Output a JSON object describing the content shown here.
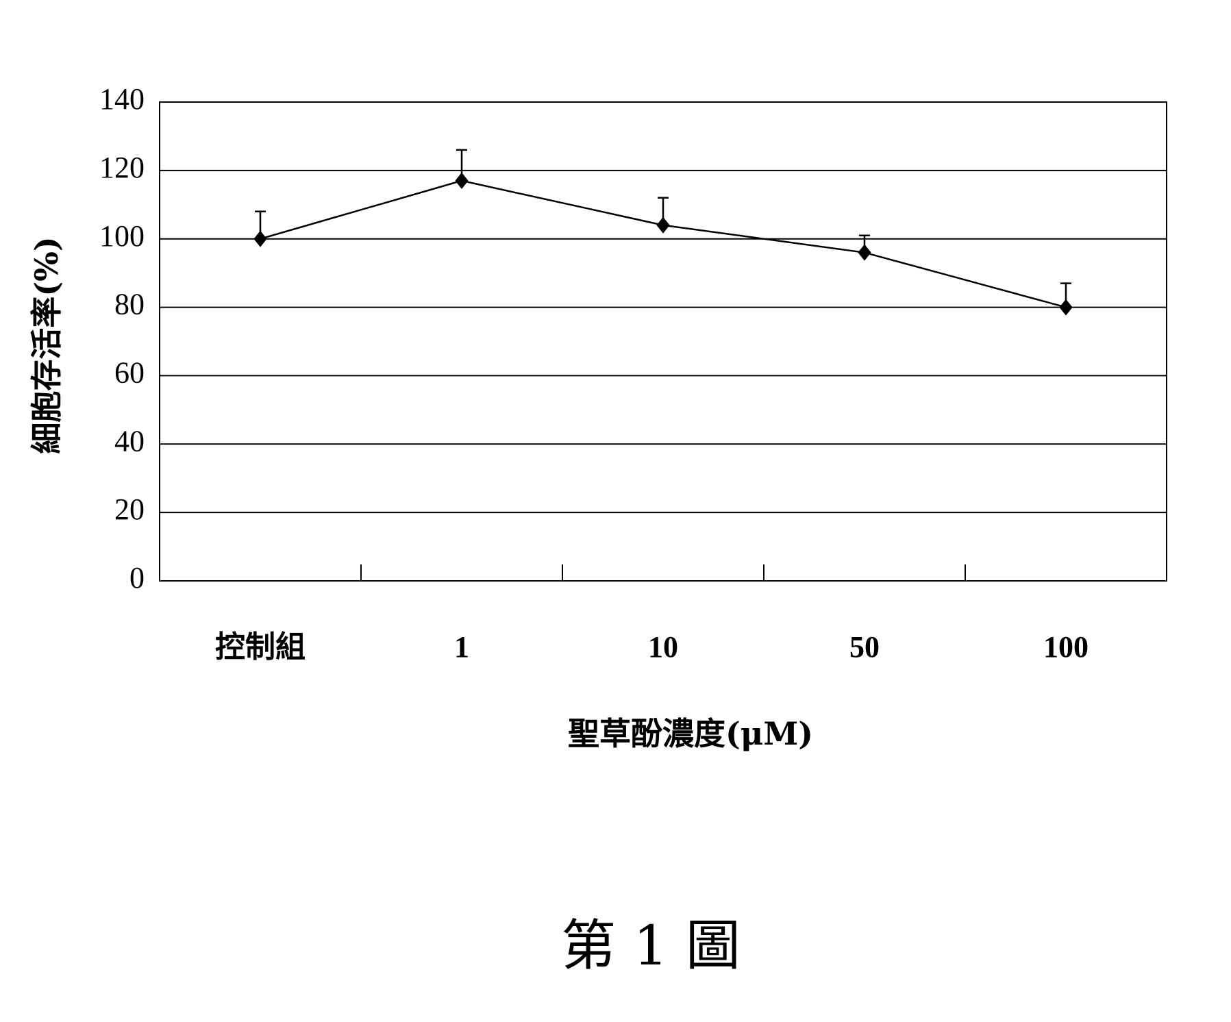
{
  "chart_data": {
    "type": "line",
    "y_label": "細胞存活率(%)",
    "x_label": "聖草酚濃度(μM)",
    "caption": "第 1 圖",
    "categories": [
      "控制組",
      "1",
      "10",
      "50",
      "100"
    ],
    "values": [
      100,
      117,
      104,
      96,
      80
    ],
    "errors": [
      8,
      9,
      8,
      5,
      7
    ],
    "color": "#000000",
    "ylim": [
      0,
      140
    ],
    "yticks": [
      0,
      20,
      40,
      60,
      80,
      100,
      120,
      140
    ],
    "grid": true
  }
}
